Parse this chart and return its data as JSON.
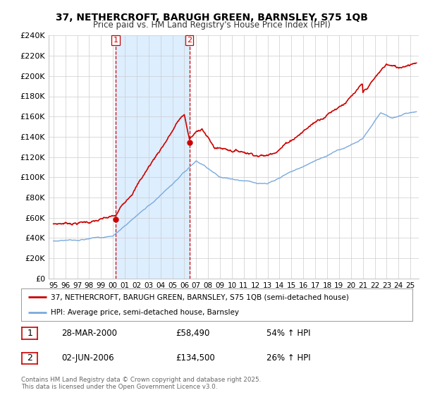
{
  "title_line1": "37, NETHERCROFT, BARUGH GREEN, BARNSLEY, S75 1QB",
  "title_line2": "Price paid vs. HM Land Registry's House Price Index (HPI)",
  "legend_line1": "37, NETHERCROFT, BARUGH GREEN, BARNSLEY, S75 1QB (semi-detached house)",
  "legend_line2": "HPI: Average price, semi-detached house, Barnsley",
  "sale1_label": "1",
  "sale1_date": "28-MAR-2000",
  "sale1_price": "£58,490",
  "sale1_hpi": "54% ↑ HPI",
  "sale2_label": "2",
  "sale2_date": "02-JUN-2006",
  "sale2_price": "£134,500",
  "sale2_hpi": "26% ↑ HPI",
  "footer": "Contains HM Land Registry data © Crown copyright and database right 2025.\nThis data is licensed under the Open Government Licence v3.0.",
  "sale_color": "#cc0000",
  "hpi_color": "#7aaadd",
  "shade_color": "#ddeeff",
  "background_color": "#ffffff",
  "grid_color": "#cccccc",
  "ylim": [
    0,
    240000
  ],
  "ytick_step": 20000,
  "sale1_year": 2000.24,
  "sale1_value": 58490,
  "sale2_year": 2006.42,
  "sale2_value": 134500
}
